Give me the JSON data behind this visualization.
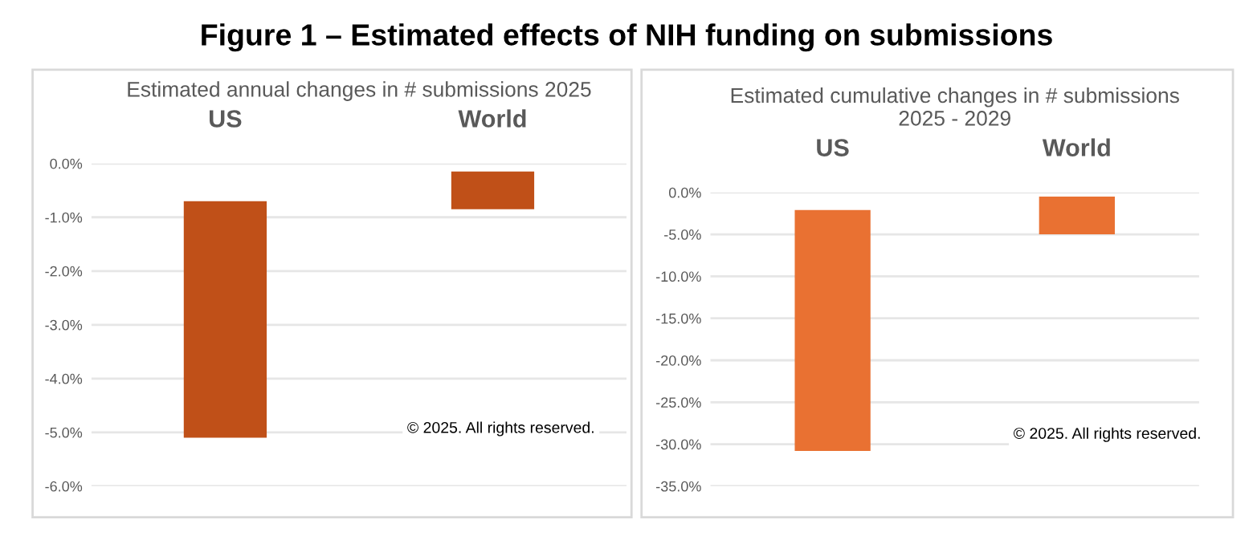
{
  "chart_data": [
    {
      "type": "bar",
      "title": "Estimated annual changes in # submissions 2025",
      "categories": [
        "US",
        "World"
      ],
      "base": [
        -0.7,
        -0.15
      ],
      "values": [
        -4.4,
        -0.7
      ],
      "color": "#c05018",
      "ylim": [
        -6.0,
        0.0
      ],
      "yticks": [
        {
          "value": 0,
          "label": "0.0%"
        },
        {
          "value": -1,
          "label": "-1.0%"
        },
        {
          "value": -2,
          "label": "-2.0%"
        },
        {
          "value": -3,
          "label": "-3.0%"
        },
        {
          "value": -4,
          "label": "-4.0%"
        },
        {
          "value": -5,
          "label": "-5.0%"
        },
        {
          "value": -6,
          "label": "-6.0%"
        }
      ],
      "grid": "y",
      "annotations": [
        "Figure 1 – Estimated effects of NIH funding on submissions",
        "© 2025. All rights reserved."
      ]
    },
    {
      "type": "bar",
      "title": "Estimated cumulative changes in # submissions\n2025 - 2029",
      "categories": [
        "US",
        "World"
      ],
      "base": [
        -2.1,
        -0.5
      ],
      "values": [
        -28.7,
        -4.5
      ],
      "color": "#e97132",
      "ylim": [
        -35.0,
        0.0
      ],
      "yticks": [
        {
          "value": 0,
          "label": "0.0%"
        },
        {
          "value": -5,
          "label": "-5.0%"
        },
        {
          "value": -10,
          "label": "-10.0%"
        },
        {
          "value": -15,
          "label": "-15.0%"
        },
        {
          "value": -20,
          "label": "-20.0%"
        },
        {
          "value": -25,
          "label": "-25.0%"
        },
        {
          "value": -30,
          "label": "-30.0%"
        },
        {
          "value": -35,
          "label": "-35.0%"
        }
      ],
      "grid": "y",
      "annotations": [
        "© 2025. All rights reserved."
      ]
    }
  ]
}
